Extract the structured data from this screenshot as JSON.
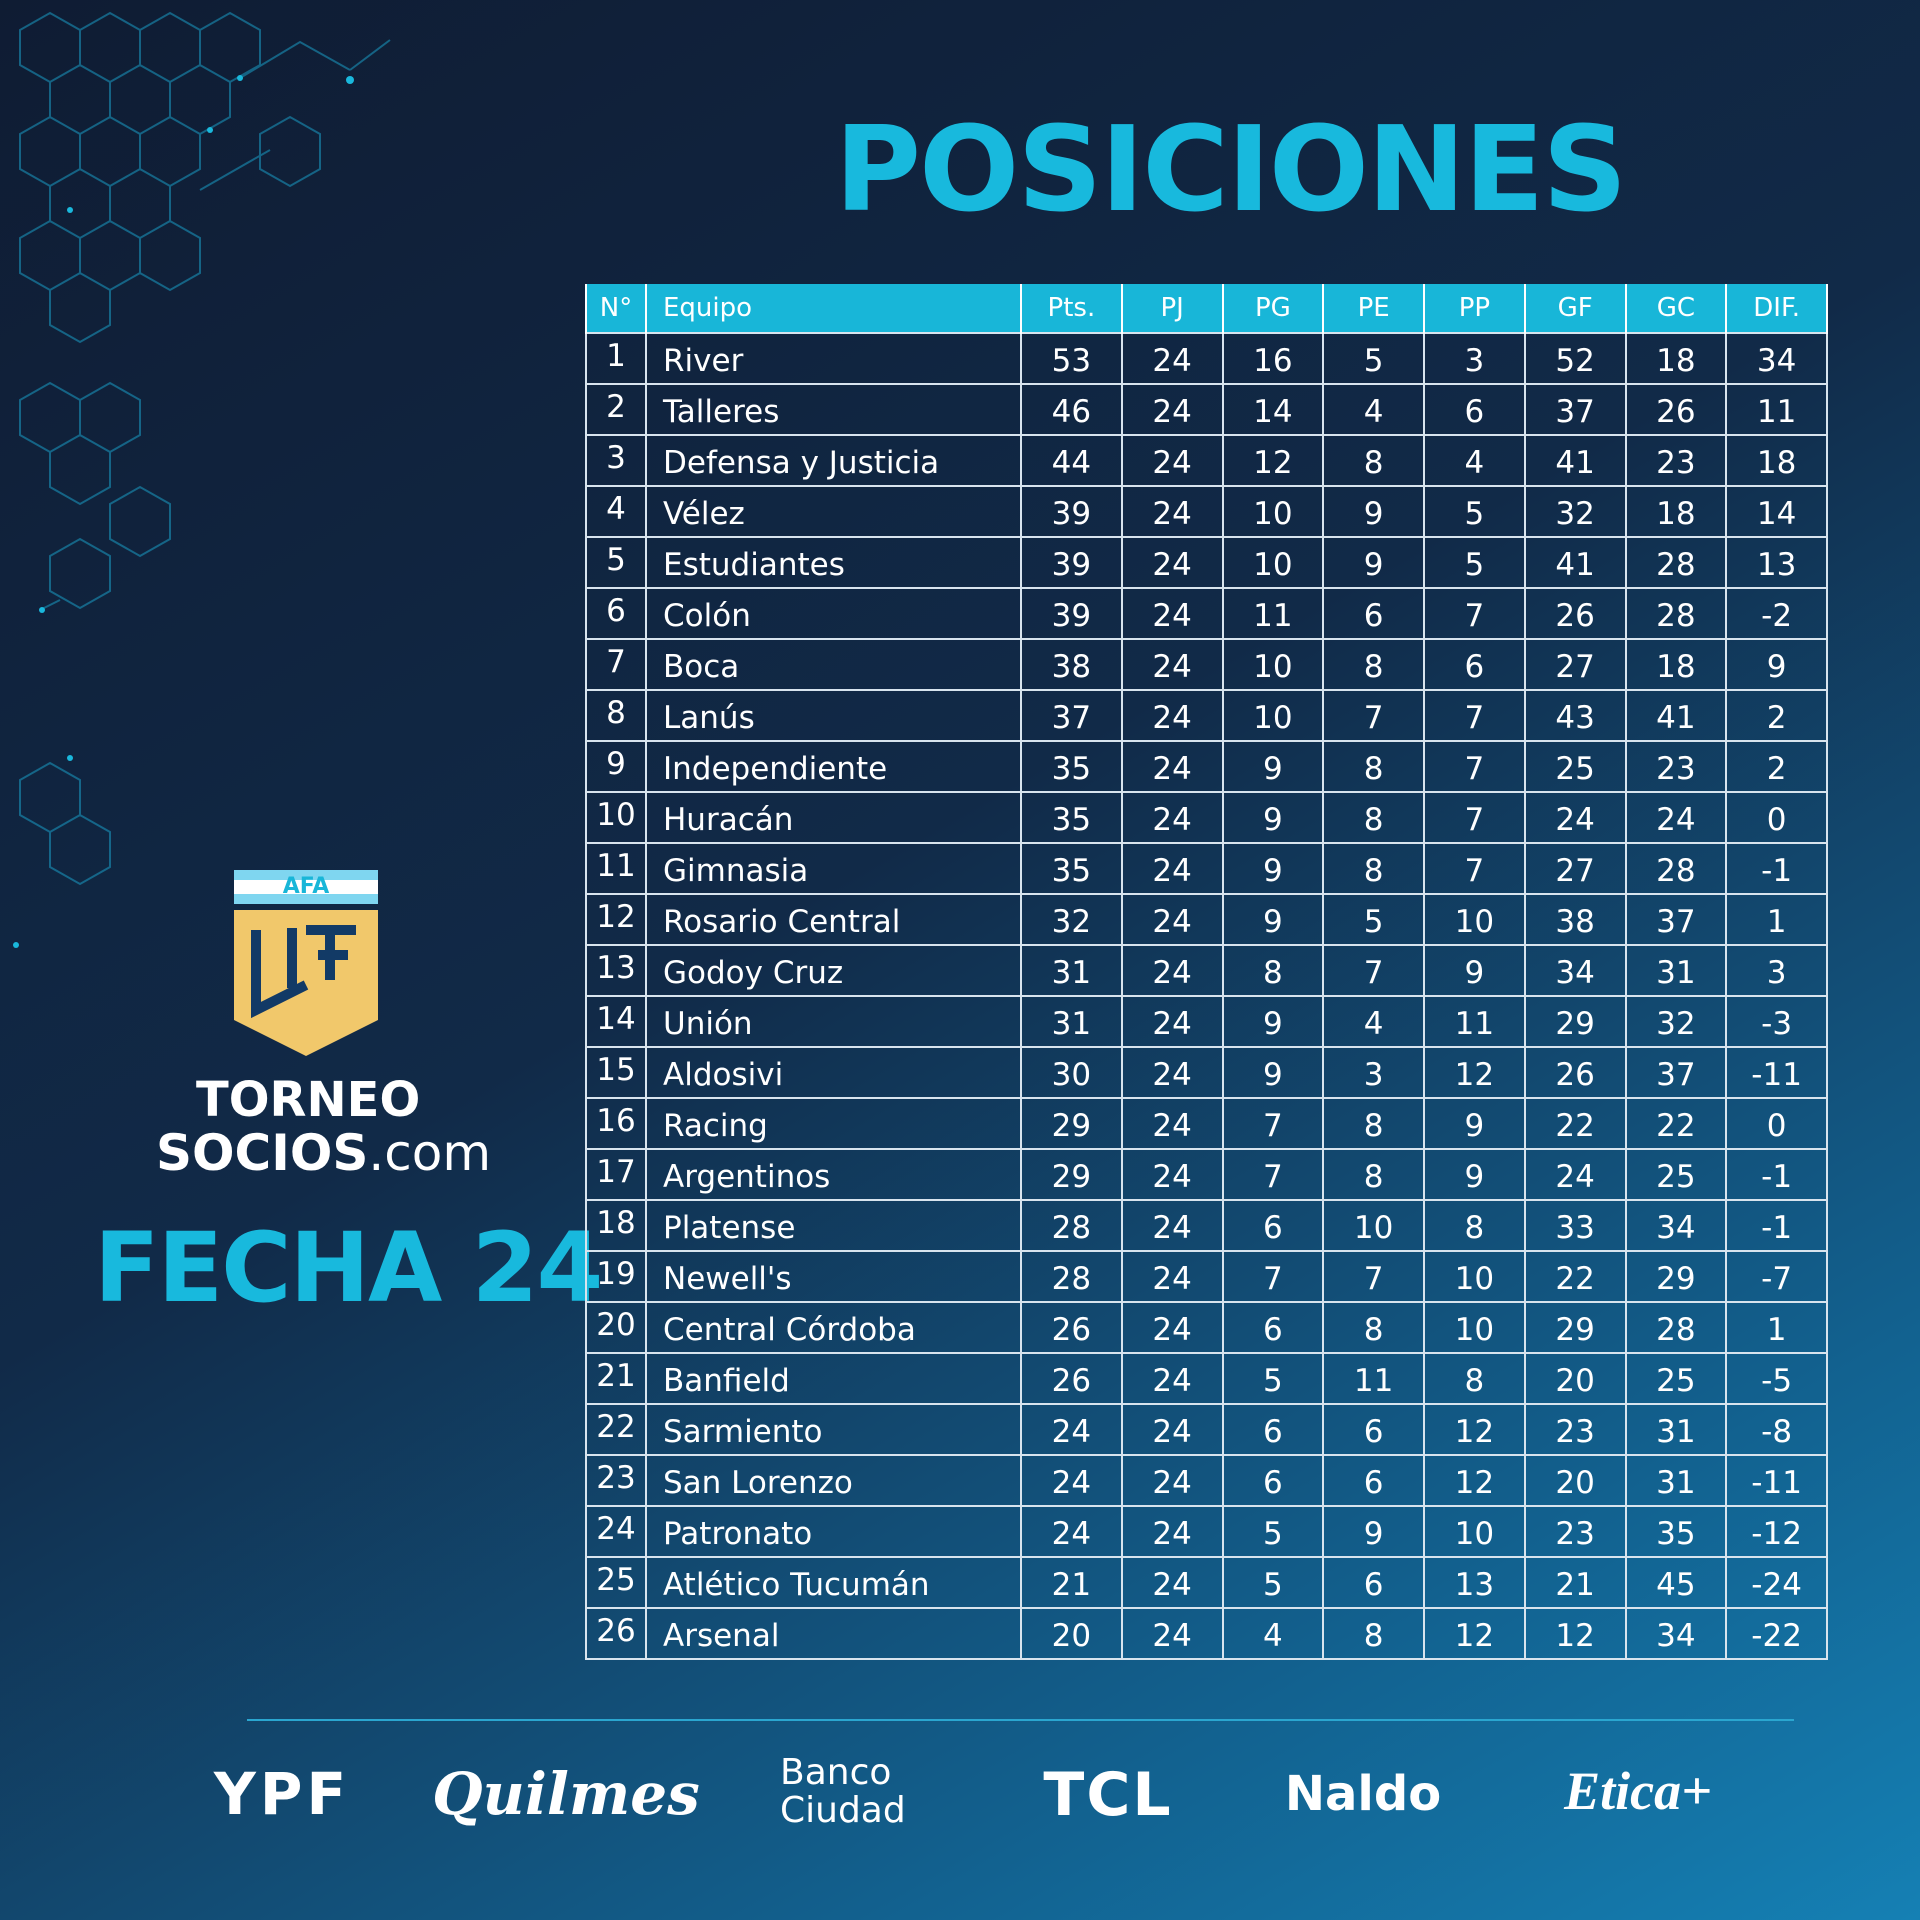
{
  "title": "POSICIONES",
  "logo": {
    "afa": "AFA",
    "torneo": "TORNEO",
    "socios": "SOCIOS",
    "dotcom": ".com",
    "fecha": "FECHA 24"
  },
  "table": {
    "columns": [
      "N°",
      "Equipo",
      "Pts.",
      "PJ",
      "PG",
      "PE",
      "PP",
      "GF",
      "GC",
      "DIF."
    ],
    "rows": [
      [
        1,
        "River",
        53,
        24,
        16,
        5,
        3,
        52,
        18,
        34
      ],
      [
        2,
        "Talleres",
        46,
        24,
        14,
        4,
        6,
        37,
        26,
        11
      ],
      [
        3,
        "Defensa y Justicia",
        44,
        24,
        12,
        8,
        4,
        41,
        23,
        18
      ],
      [
        4,
        "Vélez",
        39,
        24,
        10,
        9,
        5,
        32,
        18,
        14
      ],
      [
        5,
        "Estudiantes",
        39,
        24,
        10,
        9,
        5,
        41,
        28,
        13
      ],
      [
        6,
        "Colón",
        39,
        24,
        11,
        6,
        7,
        26,
        28,
        -2
      ],
      [
        7,
        "Boca",
        38,
        24,
        10,
        8,
        6,
        27,
        18,
        9
      ],
      [
        8,
        "Lanús",
        37,
        24,
        10,
        7,
        7,
        43,
        41,
        2
      ],
      [
        9,
        "Independiente",
        35,
        24,
        9,
        8,
        7,
        25,
        23,
        2
      ],
      [
        10,
        "Huracán",
        35,
        24,
        9,
        8,
        7,
        24,
        24,
        0
      ],
      [
        11,
        "Gimnasia",
        35,
        24,
        9,
        8,
        7,
        27,
        28,
        -1
      ],
      [
        12,
        "Rosario Central",
        32,
        24,
        9,
        5,
        10,
        38,
        37,
        1
      ],
      [
        13,
        "Godoy Cruz",
        31,
        24,
        8,
        7,
        9,
        34,
        31,
        3
      ],
      [
        14,
        "Unión",
        31,
        24,
        9,
        4,
        11,
        29,
        32,
        -3
      ],
      [
        15,
        "Aldosivi",
        30,
        24,
        9,
        3,
        12,
        26,
        37,
        -11
      ],
      [
        16,
        "Racing",
        29,
        24,
        7,
        8,
        9,
        22,
        22,
        0
      ],
      [
        17,
        "Argentinos",
        29,
        24,
        7,
        8,
        9,
        24,
        25,
        -1
      ],
      [
        18,
        "Platense",
        28,
        24,
        6,
        10,
        8,
        33,
        34,
        -1
      ],
      [
        19,
        "Newell's",
        28,
        24,
        7,
        7,
        10,
        22,
        29,
        -7
      ],
      [
        20,
        "Central Córdoba",
        26,
        24,
        6,
        8,
        10,
        29,
        28,
        1
      ],
      [
        21,
        "Banfield",
        26,
        24,
        5,
        11,
        8,
        20,
        25,
        -5
      ],
      [
        22,
        "Sarmiento",
        24,
        24,
        6,
        6,
        12,
        23,
        31,
        -8
      ],
      [
        23,
        "San Lorenzo",
        24,
        24,
        6,
        6,
        12,
        20,
        31,
        -11
      ],
      [
        24,
        "Patronato",
        24,
        24,
        5,
        9,
        10,
        23,
        35,
        -12
      ],
      [
        25,
        "Atlético Tucumán",
        21,
        24,
        5,
        6,
        13,
        21,
        45,
        -24
      ],
      [
        26,
        "Arsenal",
        20,
        24,
        4,
        8,
        12,
        12,
        34,
        -22
      ]
    ]
  },
  "sponsors": [
    "YPF",
    "Quilmes",
    "Banco Ciudad",
    "TCL",
    "Naldo",
    "Etica+"
  ]
}
